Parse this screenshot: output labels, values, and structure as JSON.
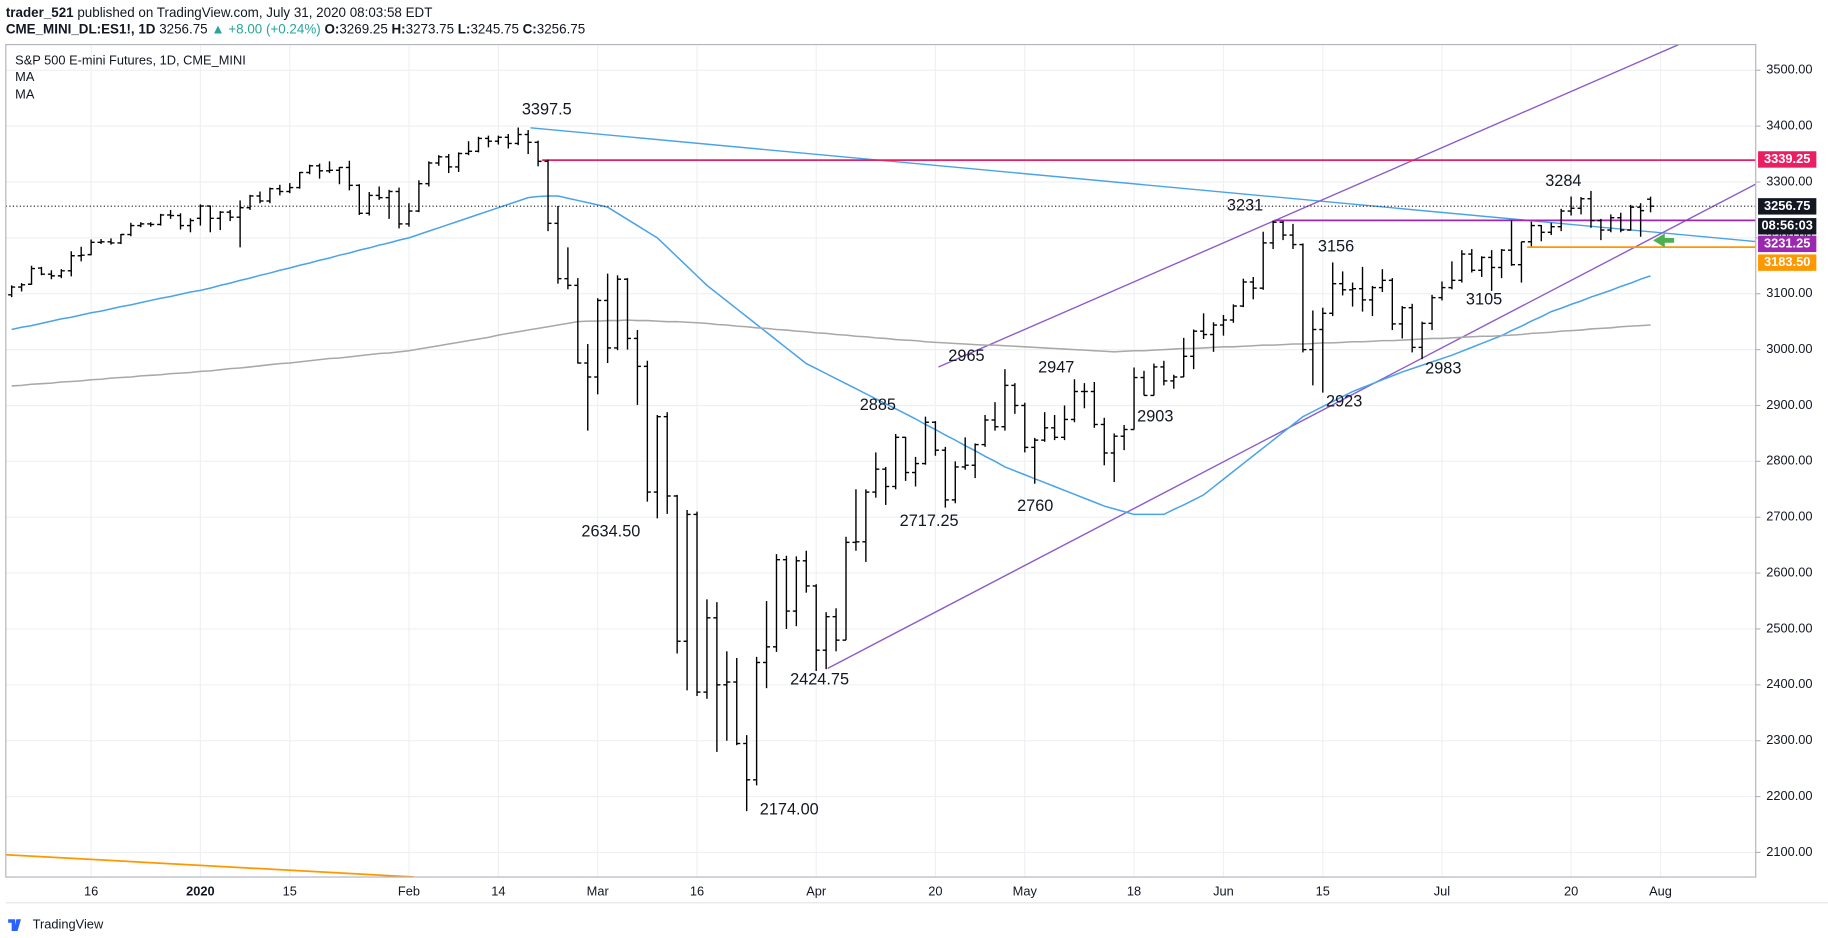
{
  "header": {
    "author": "trader_521",
    "published": "published on TradingView.com, July 31, 2020 08:03:58 EDT",
    "symbol": "CME_MINI_DL:ES1!, 1D",
    "last": "3256.75",
    "change": "▲ +8.00 (+0.24%)",
    "ohlc_items": [
      {
        "label": "O:",
        "value": "3269.25"
      },
      {
        "label": "H:",
        "value": "3273.75"
      },
      {
        "label": "L:",
        "value": "3245.75"
      },
      {
        "label": "C:",
        "value": "3256.75"
      }
    ]
  },
  "footer": {
    "brand": "TradingView"
  },
  "chart_data": {
    "type": "ohlc",
    "title": "S&P 500 E-mini Futures, 1D, CME_MINI",
    "categories": [
      null,
      null,
      null,
      null,
      null,
      null,
      null,
      null,
      "16",
      null,
      null,
      null,
      null,
      null,
      null,
      null,
      null,
      null,
      null,
      "2020",
      null,
      null,
      null,
      null,
      null,
      null,
      null,
      null,
      "15",
      null,
      null,
      null,
      null,
      null,
      null,
      null,
      null,
      null,
      null,
      null,
      "Feb",
      null,
      null,
      null,
      null,
      null,
      null,
      null,
      null,
      "14",
      null,
      null,
      null,
      null,
      null,
      null,
      null,
      null,
      null,
      "Mar",
      null,
      null,
      null,
      null,
      null,
      null,
      null,
      null,
      null,
      "16",
      null,
      null,
      null,
      null,
      null,
      null,
      null,
      null,
      null,
      null,
      null,
      "Apr",
      null,
      null,
      null,
      null,
      null,
      null,
      null,
      null,
      null,
      null,
      null,
      "20",
      null,
      null,
      null,
      null,
      null,
      null,
      null,
      null,
      "May",
      null,
      null,
      null,
      null,
      null,
      null,
      null,
      null,
      null,
      null,
      "18",
      null,
      null,
      null,
      null,
      null,
      null,
      null,
      null,
      "Jun",
      null,
      null,
      null,
      null,
      null,
      null,
      null,
      null,
      null,
      "15",
      null,
      null,
      null,
      null,
      null,
      null,
      null,
      null,
      null,
      null,
      null,
      "Jul",
      null,
      null,
      null,
      null,
      null,
      null,
      null,
      null,
      null,
      null,
      null,
      null,
      "20",
      null,
      null,
      null,
      null,
      null,
      null,
      null,
      null,
      "Aug"
    ],
    "ohlc": {
      "color": "#000000",
      "open": [
        3098,
        3112,
        3117,
        3146,
        3135,
        3132,
        3141,
        3168,
        3170,
        3192,
        3193,
        3191,
        3206,
        3222,
        3225,
        3224,
        3241,
        3240,
        3222,
        3235,
        3257,
        3235,
        3246,
        3237,
        3254,
        3275,
        3266,
        3288,
        3283,
        3290,
        3317,
        3329,
        3320,
        3321,
        3326,
        3294,
        3244,
        3276,
        3272,
        3283,
        3225,
        3248,
        3297,
        3334,
        3345,
        3327,
        3351,
        3355,
        3378,
        3373,
        3380,
        3369,
        3385,
        3371,
        3337,
        3226,
        3127,
        3115,
        2976,
        2951,
        3088,
        3003,
        3126,
        3020,
        2970,
        2745,
        2880,
        2738,
        2478,
        2705,
        2387,
        2520,
        2400,
        2405,
        2295,
        2230,
        2440,
        2468,
        2624,
        2532,
        2622,
        2577,
        2462,
        2522,
        2480,
        2655,
        2656,
        2745,
        2786,
        2755,
        2843,
        2780,
        2796,
        2870,
        2820,
        2731,
        2790,
        2793,
        2830,
        2874,
        2862,
        2936,
        2900,
        2825,
        2838,
        2860,
        2843,
        2875,
        2925,
        2925,
        2866,
        2815,
        2845,
        2857,
        2950,
        2918,
        2969,
        2944,
        2951,
        2988,
        3033,
        3027,
        3044,
        3053,
        3078,
        3121,
        3110,
        3191,
        3228,
        3205,
        3188,
        3000,
        3036,
        3065,
        3118,
        3107,
        3109,
        3089,
        3111,
        3124,
        3046,
        3075,
        3004,
        3047,
        3093,
        3111,
        3124,
        3171,
        3142,
        3165,
        3147,
        3178,
        3152,
        3193,
        3222,
        3210,
        3220,
        3248,
        3253,
        3270,
        3231,
        3214,
        3236,
        3214,
        3255,
        3269.25,
        null
      ],
      "high": [
        3115,
        3119,
        3150,
        3148,
        3142,
        3144,
        3176,
        3184,
        3197,
        3198,
        3199,
        3207,
        3227,
        3228,
        3228,
        3243,
        3250,
        3244,
        3235,
        3260,
        3258,
        3248,
        3250,
        3267,
        3277,
        3283,
        3290,
        3295,
        3298,
        3318,
        3331,
        3333,
        3337,
        3327,
        3338,
        3296,
        3282,
        3292,
        3286,
        3290,
        3262,
        3303,
        3337,
        3348,
        3350,
        3353,
        3373,
        3381,
        3383,
        3383,
        3386,
        3397.5,
        3393,
        3374,
        3340,
        3257,
        3183,
        3128,
        3010,
        3092,
        3136,
        3133,
        3128,
        3035,
        2980,
        2883,
        2888,
        2740,
        2713,
        2710,
        2553,
        2548,
        2460,
        2448,
        2310,
        2450,
        2550,
        2634,
        2631,
        2630,
        2640,
        2580,
        2530,
        2537,
        2665,
        2750,
        2750,
        2816,
        2790,
        2849,
        2844,
        2808,
        2880,
        2872,
        2826,
        2800,
        2843,
        2832,
        2883,
        2906,
        2965,
        2940,
        2905,
        2842,
        2888,
        2883,
        2900,
        2947,
        2940,
        2942,
        2878,
        2850,
        2865,
        2968,
        2962,
        2975,
        2980,
        2955,
        3021,
        3036,
        3065,
        3049,
        3062,
        3081,
        3127,
        3130,
        3211,
        3231,
        3230,
        3225,
        3190,
        3070,
        3075,
        3156,
        3140,
        3120,
        3148,
        3114,
        3144,
        3128,
        3078,
        3082,
        3050,
        3098,
        3122,
        3158,
        3178,
        3180,
        3167,
        3178,
        3180,
        3231,
        3193,
        3229,
        3223,
        3227,
        3252,
        3274,
        3273,
        3284,
        3234,
        3242,
        3245,
        3259,
        3262,
        3273.75,
        null
      ],
      "low": [
        3094,
        3104,
        3116,
        3133,
        3126,
        3128,
        3131,
        3158,
        3169,
        3189,
        3188,
        3189,
        3203,
        3219,
        3220,
        3222,
        3234,
        3215,
        3210,
        3222,
        3210,
        3214,
        3230,
        3183,
        3250,
        3262,
        3262,
        3276,
        3280,
        3288,
        3314,
        3306,
        3316,
        3296,
        3285,
        3241,
        3240,
        3268,
        3234,
        3217,
        3220,
        3246,
        3292,
        3329,
        3316,
        3318,
        3348,
        3353,
        3362,
        3367,
        3360,
        3366,
        3350,
        3328,
        3212,
        3118,
        3108,
        2975,
        2855,
        2920,
        2976,
        2999,
        3000,
        2901,
        2728,
        2698,
        2706,
        2456,
        2390,
        2380,
        2375,
        2280,
        2300,
        2292,
        2174,
        2220,
        2394,
        2459,
        2500,
        2505,
        2565,
        2424.75,
        2428,
        2460,
        2480,
        2640,
        2620,
        2735,
        2722,
        2750,
        2765,
        2755,
        2794,
        2810,
        2717.25,
        2725,
        2785,
        2770,
        2826,
        2855,
        2855,
        2885,
        2816,
        2760,
        2835,
        2838,
        2838,
        2870,
        2895,
        2860,
        2793,
        2763,
        2820,
        2857,
        2918,
        2918,
        2936,
        2930,
        2951,
        2965,
        3019,
        2996,
        3025,
        3048,
        3076,
        3090,
        3107,
        3180,
        3196,
        3180,
        2995,
        2936,
        2923,
        3060,
        3097,
        3077,
        3068,
        3060,
        3103,
        3035,
        3020,
        2995,
        2983,
        3035,
        3088,
        3108,
        3120,
        3138,
        3130,
        3105,
        3128,
        3150,
        3120,
        3185,
        3194,
        3205,
        3212,
        3240,
        3242,
        3218,
        3196,
        3210,
        3210,
        3213,
        3202,
        3245.75,
        null
      ],
      "close": [
        3112,
        3116,
        3145,
        3135,
        3132,
        3141,
        3168,
        3169,
        3192,
        3193,
        3191,
        3206,
        3222,
        3225,
        3224,
        3241,
        3240,
        3222,
        3231,
        3257,
        3235,
        3246,
        3237,
        3254,
        3275,
        3266,
        3288,
        3283,
        3290,
        3317,
        3329,
        3320,
        3321,
        3326,
        3294,
        3244,
        3276,
        3272,
        3283,
        3225,
        3248,
        3297,
        3334,
        3345,
        3327,
        3351,
        3355,
        3378,
        3373,
        3380,
        3369,
        3385,
        3371,
        3337,
        3226,
        3127,
        3115,
        2976,
        2951,
        3088,
        3003,
        3126,
        3020,
        2970,
        2745,
        2880,
        2738,
        2478,
        2705,
        2387,
        2520,
        2400,
        2405,
        2295,
        2230,
        2440,
        2468,
        2624,
        2532,
        2622,
        2577,
        2462,
        2522,
        2480,
        2655,
        2656,
        2745,
        2786,
        2755,
        2843,
        2780,
        2796,
        2870,
        2820,
        2731,
        2790,
        2793,
        2830,
        2874,
        2862,
        2936,
        2900,
        2825,
        2838,
        2860,
        2843,
        2875,
        2925,
        2925,
        2866,
        2815,
        2845,
        2857,
        2950,
        2918,
        2969,
        2944,
        2951,
        2988,
        3033,
        3027,
        3044,
        3053,
        3078,
        3121,
        3110,
        3191,
        3228,
        3205,
        3188,
        3000,
        3036,
        3065,
        3118,
        3107,
        3109,
        3089,
        3111,
        3124,
        3046,
        3075,
        3004,
        3047,
        3093,
        3111,
        3124,
        3171,
        3142,
        3165,
        3147,
        3178,
        3152,
        3193,
        3222,
        3210,
        3220,
        3248,
        3253,
        3270,
        3231,
        3214,
        3236,
        3214,
        3255,
        3248.75,
        3256.75,
        null
      ]
    },
    "series": [
      {
        "name": "MA",
        "color": "#4aa3e8",
        "values": [
          3036,
          3040,
          3043,
          3047,
          3051,
          3055,
          3058,
          3062,
          3066,
          3069,
          3073,
          3077,
          3080,
          3084,
          3088,
          3092,
          3095,
          3099,
          3103,
          3106,
          3110,
          3115,
          3119,
          3124,
          3128,
          3133,
          3137,
          3142,
          3146,
          3151,
          3155,
          3160,
          3164,
          3169,
          3173,
          3178,
          3182,
          3187,
          3191,
          3196,
          3200,
          3206,
          3212,
          3218,
          3224,
          3230,
          3236,
          3242,
          3248,
          3254,
          3260,
          3266,
          3272,
          3274,
          3275,
          3275,
          3271,
          3267,
          3263,
          3259,
          3255,
          3244,
          3233,
          3222,
          3211,
          3200,
          3183,
          3166,
          3149,
          3132,
          3115,
          3101,
          3087,
          3073,
          3059,
          3045,
          3031,
          3017,
          3003,
          2989,
          2975,
          2966,
          2957,
          2948,
          2939,
          2930,
          2921,
          2912,
          2903,
          2894,
          2885,
          2876,
          2866,
          2857,
          2847,
          2838,
          2828,
          2819,
          2809,
          2800,
          2790,
          2783,
          2776,
          2769,
          2762,
          2755,
          2748,
          2741,
          2734,
          2727,
          2720,
          2715,
          2710,
          2705,
          2705,
          2705,
          2705,
          2714,
          2722,
          2731,
          2740,
          2754,
          2768,
          2782,
          2796,
          2810,
          2824,
          2838,
          2852,
          2866,
          2880,
          2889,
          2898,
          2907,
          2916,
          2925,
          2932,
          2939,
          2946,
          2953,
          2960,
          2966,
          2972,
          2978,
          2984,
          2990,
          2997,
          3004,
          3011,
          3018,
          3025,
          3034,
          3042,
          3051,
          3059,
          3068,
          3074,
          3081,
          3087,
          3094,
          3100,
          3106,
          3113,
          3119,
          3126,
          3132,
          null
        ]
      },
      {
        "name": "MA",
        "color": "#a8a8a8",
        "values": [
          2935,
          2936,
          2938,
          2939,
          2940,
          2942,
          2943,
          2944,
          2946,
          2947,
          2949,
          2950,
          2951,
          2953,
          2954,
          2955,
          2957,
          2958,
          2959,
          2961,
          2962,
          2964,
          2966,
          2967,
          2969,
          2971,
          2973,
          2975,
          2976,
          2978,
          2980,
          2982,
          2984,
          2985,
          2987,
          2989,
          2991,
          2993,
          2994,
          2996,
          2998,
          3001,
          3004,
          3007,
          3010,
          3013,
          3016,
          3019,
          3022,
          3026,
          3029,
          3032,
          3035,
          3038,
          3041,
          3044,
          3047,
          3050,
          3051,
          3051,
          3052,
          3052,
          3053,
          3052,
          3052,
          3051,
          3050,
          3050,
          3049,
          3048,
          3047,
          3045,
          3044,
          3042,
          3041,
          3039,
          3038,
          3036,
          3035,
          3033,
          3032,
          3030,
          3029,
          3027,
          3026,
          3024,
          3023,
          3021,
          3020,
          3018,
          3017,
          3016,
          3014,
          3013,
          3012,
          3011,
          3010,
          3009,
          3008,
          3008,
          3007,
          3006,
          3005,
          3004,
          3003,
          3002,
          3001,
          3000,
          2999,
          2998,
          2997,
          2996,
          2997,
          2998,
          2998,
          2999,
          3000,
          3001,
          3002,
          3002,
          3003,
          3004,
          3005,
          3005,
          3006,
          3007,
          3008,
          3008,
          3009,
          3010,
          3010,
          3011,
          3012,
          3012,
          3013,
          3014,
          3014,
          3015,
          3016,
          3016,
          3017,
          3018,
          3019,
          3020,
          3020,
          3021,
          3022,
          3023,
          3024,
          3024,
          3025,
          3026,
          3027,
          3029,
          3030,
          3031,
          3033,
          3034,
          3035,
          3037,
          3038,
          3039,
          3041,
          3042,
          3043,
          3044,
          null
        ]
      }
    ],
    "ylim": [
      2056,
      3546
    ],
    "yticks": [
      {
        "value": 2100,
        "label": "2100.00"
      },
      {
        "value": 2200,
        "label": "2200.00"
      },
      {
        "value": 2300,
        "label": "2300.00"
      },
      {
        "value": 2400,
        "label": "2400.00"
      },
      {
        "value": 2500,
        "label": "2500.00"
      },
      {
        "value": 2600,
        "label": "2600.00"
      },
      {
        "value": 2700,
        "label": "2700.00"
      },
      {
        "value": 2800,
        "label": "2800.00"
      },
      {
        "value": 2900,
        "label": "2900.00"
      },
      {
        "value": 3000,
        "label": "3000.00"
      },
      {
        "value": 3100,
        "label": "3100.00"
      },
      {
        "value": 3200,
        "label": "3200.00"
      },
      {
        "value": 3300,
        "label": "3300.00"
      },
      {
        "value": 3400,
        "label": "3400.00"
      },
      {
        "value": 3500,
        "label": "3500.00"
      }
    ],
    "grid": true,
    "price_lines": [
      {
        "value": 3339.25,
        "color": "#e91e63"
      },
      {
        "value": 3256.75,
        "color": "#131722",
        "style": "dotted"
      },
      {
        "value": 3231.25,
        "color": "#9c27b0"
      },
      {
        "value": 3183.5,
        "label": "3183.50",
        "color": "#ff9800"
      }
    ],
    "countdown": "08:56:03",
    "annotations": [
      "3397.5",
      "3284",
      "3231",
      "3156",
      "2965",
      "2947",
      "2885",
      "2903",
      "2923",
      "2983",
      "3105",
      "2760",
      "2717.25",
      "2634.50",
      "2424.75",
      "2174.00"
    ]
  }
}
